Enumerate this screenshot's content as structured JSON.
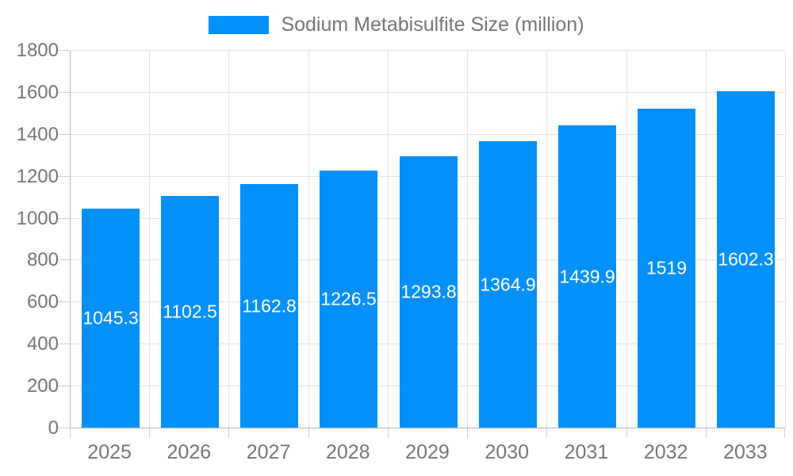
{
  "chart_data": {
    "type": "bar",
    "title": "Sodium Metabisulfite Size (million)",
    "legend_position": "top",
    "categories": [
      "2025",
      "2026",
      "2027",
      "2028",
      "2029",
      "2030",
      "2031",
      "2032",
      "2033"
    ],
    "series": [
      {
        "name": "Sodium Metabisulfite Size (million)",
        "values": [
          1045.3,
          1102.5,
          1162.8,
          1226.5,
          1293.8,
          1364.9,
          1439.9,
          1519,
          1602.3
        ],
        "labels": [
          "1045.3",
          "1102.5",
          "1162.8",
          "1226.5",
          "1293.8",
          "1364.9",
          "1439.9",
          "1519",
          "1602.3"
        ]
      }
    ],
    "xlabel": "",
    "ylabel": "",
    "ylim": [
      0,
      1800
    ],
    "yticks": [
      0,
      200,
      400,
      600,
      800,
      1000,
      1200,
      1400,
      1600,
      1800
    ],
    "grid": true
  },
  "colors": {
    "bar": "#0590F8",
    "grid": "#e3e3e3",
    "axis": "#b5b5b5",
    "tick": "#cfcfcf",
    "tick_text": "#757575",
    "legend_text": "#757575",
    "data_label": "#ffffff",
    "background": "#ffffff"
  }
}
